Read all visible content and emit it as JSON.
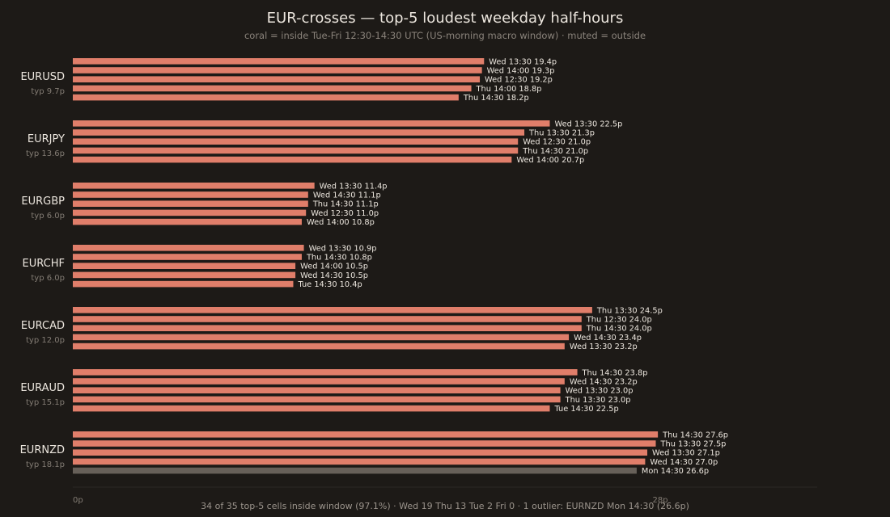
{
  "chart_data": {
    "type": "bar",
    "orientation": "horizontal",
    "title": "EUR-crosses — top-5 loudest weekday half-hours",
    "subtitle": "coral = inside Tue-Fri 12:30-14:30 UTC (US-morning macro window) · muted = outside",
    "xlim": [
      0,
      28
    ],
    "x_ticks": [
      "0p",
      "28p"
    ],
    "colors": {
      "inside": "#e07e6a",
      "outside": "#676059"
    },
    "groups": [
      {
        "pair": "EURUSD",
        "typ": "typ 9.7p",
        "bars": [
          {
            "label": "Wed 13:30 19.4p",
            "value": 19.4,
            "inside": true
          },
          {
            "label": "Wed 14:00 19.3p",
            "value": 19.3,
            "inside": true
          },
          {
            "label": "Wed 12:30 19.2p",
            "value": 19.2,
            "inside": true
          },
          {
            "label": "Thu 14:00 18.8p",
            "value": 18.8,
            "inside": true
          },
          {
            "label": "Thu 14:30 18.2p",
            "value": 18.2,
            "inside": true
          }
        ]
      },
      {
        "pair": "EURJPY",
        "typ": "typ 13.6p",
        "bars": [
          {
            "label": "Wed 13:30 22.5p",
            "value": 22.5,
            "inside": true
          },
          {
            "label": "Thu 13:30 21.3p",
            "value": 21.3,
            "inside": true
          },
          {
            "label": "Wed 12:30 21.0p",
            "value": 21.0,
            "inside": true
          },
          {
            "label": "Thu 14:30 21.0p",
            "value": 21.0,
            "inside": true
          },
          {
            "label": "Wed 14:00 20.7p",
            "value": 20.7,
            "inside": true
          }
        ]
      },
      {
        "pair": "EURGBP",
        "typ": "typ 6.0p",
        "bars": [
          {
            "label": "Wed 13:30 11.4p",
            "value": 11.4,
            "inside": true
          },
          {
            "label": "Wed 14:30 11.1p",
            "value": 11.1,
            "inside": true
          },
          {
            "label": "Thu 14:30 11.1p",
            "value": 11.1,
            "inside": true
          },
          {
            "label": "Wed 12:30 11.0p",
            "value": 11.0,
            "inside": true
          },
          {
            "label": "Wed 14:00 10.8p",
            "value": 10.8,
            "inside": true
          }
        ]
      },
      {
        "pair": "EURCHF",
        "typ": "typ 6.0p",
        "bars": [
          {
            "label": "Wed 13:30 10.9p",
            "value": 10.9,
            "inside": true
          },
          {
            "label": "Thu 14:30 10.8p",
            "value": 10.8,
            "inside": true
          },
          {
            "label": "Wed 14:00 10.5p",
            "value": 10.5,
            "inside": true
          },
          {
            "label": "Wed 14:30 10.5p",
            "value": 10.5,
            "inside": true
          },
          {
            "label": "Tue 14:30 10.4p",
            "value": 10.4,
            "inside": true
          }
        ]
      },
      {
        "pair": "EURCAD",
        "typ": "typ 12.0p",
        "bars": [
          {
            "label": "Thu 13:30 24.5p",
            "value": 24.5,
            "inside": true
          },
          {
            "label": "Thu 12:30 24.0p",
            "value": 24.0,
            "inside": true
          },
          {
            "label": "Thu 14:30 24.0p",
            "value": 24.0,
            "inside": true
          },
          {
            "label": "Wed 14:30 23.4p",
            "value": 23.4,
            "inside": true
          },
          {
            "label": "Wed 13:30 23.2p",
            "value": 23.2,
            "inside": true
          }
        ]
      },
      {
        "pair": "EURAUD",
        "typ": "typ 15.1p",
        "bars": [
          {
            "label": "Thu 14:30 23.8p",
            "value": 23.8,
            "inside": true
          },
          {
            "label": "Wed 14:30 23.2p",
            "value": 23.2,
            "inside": true
          },
          {
            "label": "Wed 13:30 23.0p",
            "value": 23.0,
            "inside": true
          },
          {
            "label": "Thu 13:30 23.0p",
            "value": 23.0,
            "inside": true
          },
          {
            "label": "Tue 14:30 22.5p",
            "value": 22.5,
            "inside": true
          }
        ]
      },
      {
        "pair": "EURNZD",
        "typ": "typ 18.1p",
        "bars": [
          {
            "label": "Thu 14:30 27.6p",
            "value": 27.6,
            "inside": true
          },
          {
            "label": "Thu 13:30 27.5p",
            "value": 27.5,
            "inside": true
          },
          {
            "label": "Wed 13:30 27.1p",
            "value": 27.1,
            "inside": true
          },
          {
            "label": "Wed 14:30 27.0p",
            "value": 27.0,
            "inside": true
          },
          {
            "label": "Mon 14:30 26.6p",
            "value": 26.6,
            "inside": false
          }
        ]
      }
    ],
    "footer": "34 of 35 top-5 cells inside window (97.1%) · Wed 19 Thu 13 Tue 2 Fri 0 · 1 outlier: EURNZD Mon 14:30 (26.6p)"
  }
}
